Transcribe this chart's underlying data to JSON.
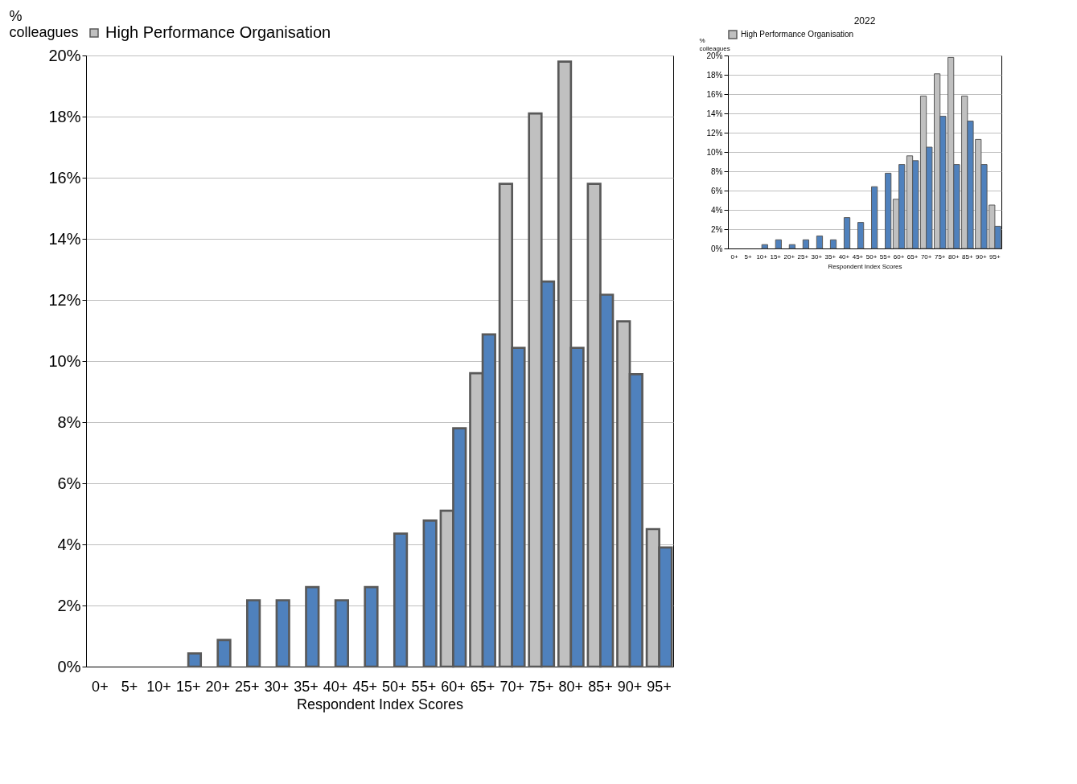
{
  "chart_data": [
    {
      "type": "bar",
      "ylabel": "% colleagues",
      "xlabel": "Respondent Index Scores",
      "categories": [
        "0+",
        "5+",
        "10+",
        "15+",
        "20+",
        "25+",
        "30+",
        "35+",
        "40+",
        "45+",
        "50+",
        "55+",
        "60+",
        "65+",
        "70+",
        "75+",
        "80+",
        "85+",
        "90+",
        "95+"
      ],
      "series": [
        {
          "name": "High Performance Organisation",
          "color": "#c0c0c0",
          "values": [
            null,
            null,
            null,
            null,
            null,
            null,
            null,
            null,
            null,
            null,
            null,
            null,
            5.1,
            9.6,
            15.8,
            18.1,
            19.8,
            15.8,
            11.3,
            4.5
          ]
        },
        {
          "color": "#4f81bd",
          "values": [
            null,
            null,
            null,
            0.43,
            0.87,
            2.17,
            2.17,
            2.6,
            2.17,
            2.6,
            4.35,
            4.78,
            7.8,
            10.87,
            10.43,
            12.6,
            10.43,
            12.17,
            9.57,
            3.9
          ]
        }
      ],
      "ylim": [
        0,
        20
      ],
      "yticks": [
        {
          "value": 0,
          "label": "0%"
        },
        {
          "value": 2,
          "label": "2%"
        },
        {
          "value": 4,
          "label": "4%"
        },
        {
          "value": 6,
          "label": "6%"
        },
        {
          "value": 8,
          "label": "8%"
        },
        {
          "value": 10,
          "label": "10%"
        },
        {
          "value": 12,
          "label": "12%"
        },
        {
          "value": 14,
          "label": "14%"
        },
        {
          "value": 16,
          "label": "16%"
        },
        {
          "value": 18,
          "label": "18%"
        },
        {
          "value": 20,
          "label": "20%"
        }
      ],
      "grid": "y",
      "legend": "top"
    },
    {
      "type": "bar",
      "title": "2022",
      "ylabel": "% colleagues",
      "xlabel": "Respondent Index Scores",
      "categories": [
        "0+",
        "5+",
        "10+",
        "15+",
        "20+",
        "25+",
        "30+",
        "35+",
        "40+",
        "45+",
        "50+",
        "55+",
        "60+",
        "65+",
        "70+",
        "75+",
        "80+",
        "85+",
        "90+",
        "95+"
      ],
      "series": [
        {
          "name": "High Performance Organisation",
          "color": "#c0c0c0",
          "values": [
            null,
            null,
            null,
            null,
            null,
            null,
            null,
            null,
            null,
            null,
            null,
            null,
            5.1,
            9.6,
            15.8,
            18.1,
            19.8,
            15.8,
            11.3,
            4.5
          ]
        },
        {
          "color": "#4f81bd",
          "values": [
            null,
            null,
            0.4,
            0.9,
            0.4,
            0.9,
            1.3,
            0.9,
            3.2,
            2.7,
            6.4,
            7.8,
            8.7,
            9.1,
            10.5,
            13.7,
            8.7,
            13.2,
            8.7,
            2.3
          ]
        }
      ],
      "ylim": [
        0,
        20
      ],
      "yticks": [
        {
          "value": 0,
          "label": "0%"
        },
        {
          "value": 2,
          "label": "2%"
        },
        {
          "value": 4,
          "label": "4%"
        },
        {
          "value": 6,
          "label": "6%"
        },
        {
          "value": 8,
          "label": "8%"
        },
        {
          "value": 10,
          "label": "10%"
        },
        {
          "value": 12,
          "label": "12%"
        },
        {
          "value": 14,
          "label": "14%"
        },
        {
          "value": 16,
          "label": "16%"
        },
        {
          "value": 18,
          "label": "18%"
        },
        {
          "value": 20,
          "label": "20%"
        }
      ],
      "grid": "y",
      "legend": "top"
    }
  ]
}
